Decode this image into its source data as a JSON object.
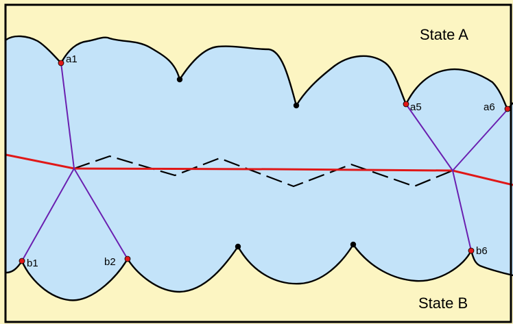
{
  "labels": {
    "state_a": "State A",
    "state_b": "State B"
  },
  "points": {
    "a1": "a1",
    "a5": "a5",
    "a6": "a6",
    "b1": "b1",
    "b2": "b2",
    "b6": "b6"
  },
  "colors": {
    "land": "#FCF5C2",
    "water": "#C3E3F9",
    "shoreline": "#000000",
    "median_line": "#E01818",
    "equidistance_line": "#000000",
    "connector": "#6A1FB0",
    "base_point": "#E01818",
    "vertex_point": "#000000",
    "border": "#000000"
  }
}
